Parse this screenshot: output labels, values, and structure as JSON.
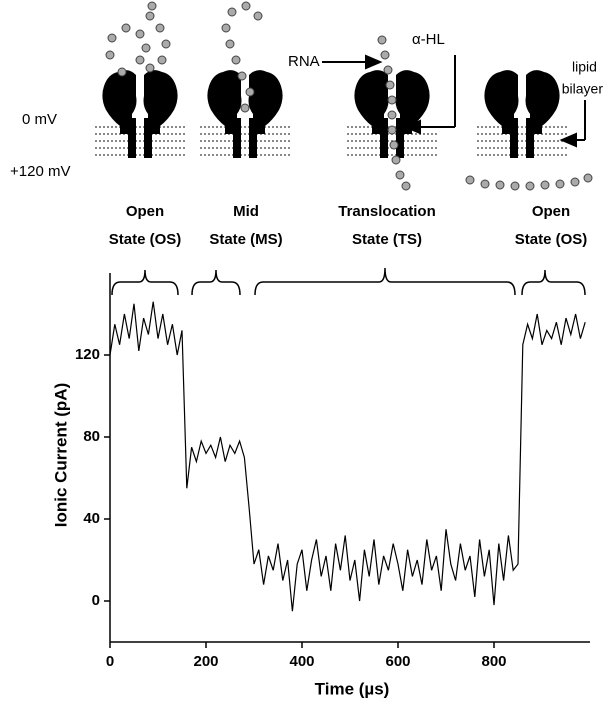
{
  "chart_data": {
    "type": "line",
    "xlabel": "Time (µs)",
    "ylabel": "Ionic Current (pA)",
    "states": [
      [
        "Open",
        "State (OS)"
      ],
      [
        "Mid",
        "State (MS)"
      ],
      [
        "Translocation",
        "State (TS)"
      ],
      [
        "Open",
        "State (OS)"
      ]
    ],
    "diagram_labels": {
      "zero": "0 mV",
      "plus": "+120 mV",
      "rna": "RNA",
      "hl": "α-HL",
      "lipid": [
        "lipid",
        "bilayer"
      ]
    },
    "xlim": [
      0,
      1000
    ],
    "ylim": [
      -20,
      160
    ],
    "xticks": [
      0,
      200,
      400,
      600,
      800
    ],
    "yticks": [
      0,
      40,
      80,
      120
    ],
    "x": [
      0,
      10,
      20,
      30,
      40,
      50,
      60,
      70,
      80,
      90,
      100,
      110,
      120,
      130,
      140,
      150,
      160,
      170,
      180,
      190,
      200,
      210,
      220,
      230,
      240,
      250,
      260,
      270,
      280,
      290,
      300,
      310,
      320,
      330,
      340,
      350,
      360,
      370,
      380,
      390,
      400,
      410,
      420,
      430,
      440,
      450,
      460,
      470,
      480,
      490,
      500,
      510,
      520,
      530,
      540,
      550,
      560,
      570,
      580,
      590,
      600,
      610,
      620,
      630,
      640,
      650,
      660,
      670,
      680,
      690,
      700,
      710,
      720,
      730,
      740,
      750,
      760,
      770,
      780,
      790,
      800,
      810,
      820,
      830,
      840,
      850,
      860,
      870,
      880,
      890,
      900,
      910,
      920,
      930,
      940,
      950,
      960,
      970,
      980,
      990
    ],
    "series": [
      {
        "color": "#000000",
        "values": [
          120,
          135,
          125,
          140,
          128,
          145,
          122,
          138,
          130,
          146,
          128,
          140,
          125,
          135,
          120,
          132,
          55,
          75,
          68,
          78,
          72,
          76,
          70,
          80,
          68,
          76,
          72,
          78,
          70,
          45,
          18,
          25,
          8,
          22,
          15,
          28,
          10,
          20,
          -5,
          18,
          25,
          5,
          20,
          30,
          12,
          22,
          5,
          28,
          15,
          32,
          10,
          20,
          0,
          25,
          12,
          30,
          8,
          22,
          15,
          28,
          18,
          5,
          25,
          12,
          20,
          8,
          30,
          15,
          22,
          5,
          35,
          18,
          10,
          28,
          15,
          22,
          2,
          30,
          12,
          25,
          -2,
          28,
          10,
          32,
          15,
          18,
          125,
          135,
          128,
          140,
          125,
          132,
          128,
          136,
          125,
          138,
          130,
          140,
          128,
          136
        ]
      }
    ]
  }
}
